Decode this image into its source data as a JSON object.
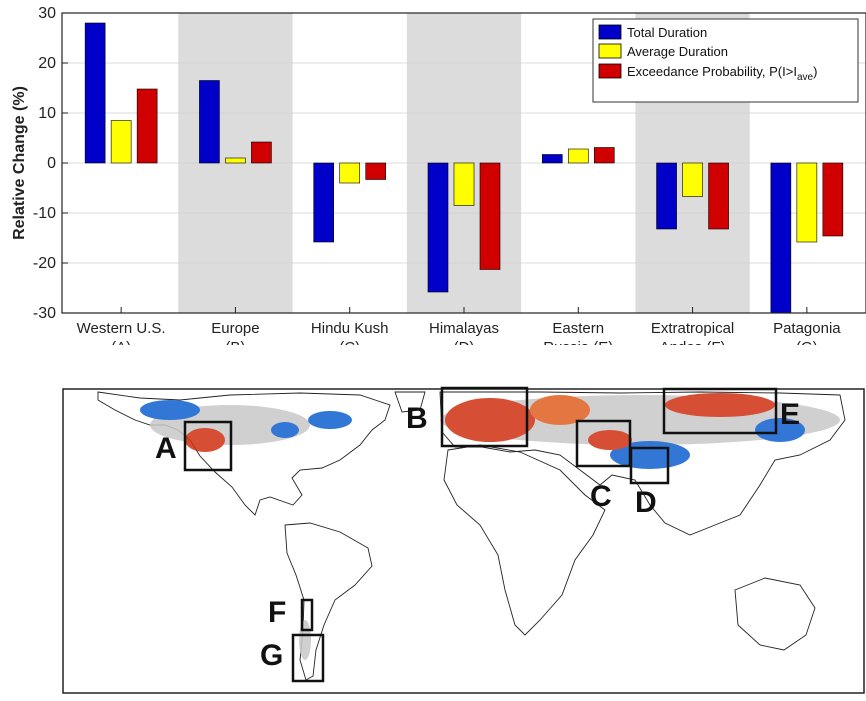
{
  "chart_data": {
    "type": "bar",
    "ylabel": "Relative Change (%)",
    "ylim": [
      -30,
      30
    ],
    "yticks": [
      30,
      20,
      10,
      0,
      -10,
      -20,
      -30
    ],
    "grid": true,
    "legend_position": "top-right",
    "categories": [
      [
        "Western U.S.",
        "(A)"
      ],
      [
        "Europe",
        "(B)"
      ],
      [
        "Hindu Kush",
        "(C)"
      ],
      [
        "Himalayas",
        "(D)"
      ],
      [
        "Eastern",
        "Russia (E)"
      ],
      [
        "Extratropical",
        "Andes (F)"
      ],
      [
        "Patagonia",
        "(G)"
      ]
    ],
    "shaded_categories": [
      1,
      3,
      5
    ],
    "series": [
      {
        "name": "Total Duration",
        "color": "#0000c8",
        "values": [
          28,
          16.5,
          -15.8,
          -25.8,
          1.7,
          -13.2,
          -30
        ]
      },
      {
        "name": "Average Duration",
        "color": "#ffff00",
        "values": [
          8.5,
          1,
          -4,
          -8.5,
          2.8,
          -6.7,
          -15.8
        ]
      },
      {
        "name": "Exceedance Probability, P(I>I",
        "name_sub": "ave",
        "name_end": ")",
        "color": "#d00000",
        "values": [
          14.8,
          4.2,
          -3.3,
          -21.3,
          3.1,
          -13.2,
          -14.6
        ]
      }
    ]
  },
  "map": {
    "region_labels": [
      "A",
      "B",
      "C",
      "D",
      "E",
      "F",
      "G"
    ],
    "colors": {
      "warm": "#d03010",
      "cool": "#1060d0",
      "neutral": "#c8c8c8"
    }
  }
}
